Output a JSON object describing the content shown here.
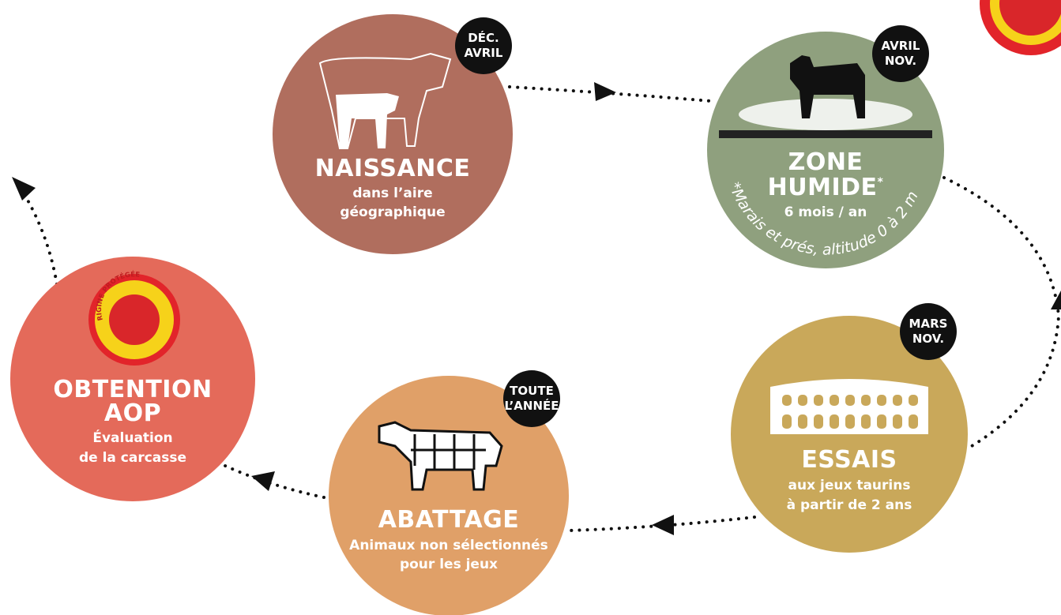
{
  "nodes": [
    {
      "badge": [
        "DÉC.",
        "AVRIL"
      ],
      "title": [
        "NAISSANCE"
      ],
      "lines": [
        "dans l’aire",
        "géographique"
      ]
    },
    {
      "badge": [
        "AVRIL",
        "NOV."
      ],
      "title": [
        "ZONE",
        "HUMIDE"
      ],
      "title_mark": "*",
      "lines": [
        "6 mois / an"
      ],
      "note": "*Marais et prés, altitude 0 à 2 m"
    },
    {
      "badge": [
        "MARS",
        "NOV."
      ],
      "title": [
        "ESSAIS"
      ],
      "subtitle": "aux jeux taurins",
      "lines": [
        "à partir de 2 ans"
      ]
    },
    {
      "badge": [
        "TOUTE",
        "L’ANNÉE"
      ],
      "title": [
        "ABATTAGE"
      ],
      "lines": [
        "Animaux non sélectionnés",
        "pour les jeux"
      ]
    },
    {
      "seal": "APPELLATION D’ORIGINE PROTÉGÉE",
      "title": [
        "OBTENTION",
        "AOP"
      ],
      "lines": [
        "Évaluation",
        "de la carcasse"
      ]
    }
  ]
}
